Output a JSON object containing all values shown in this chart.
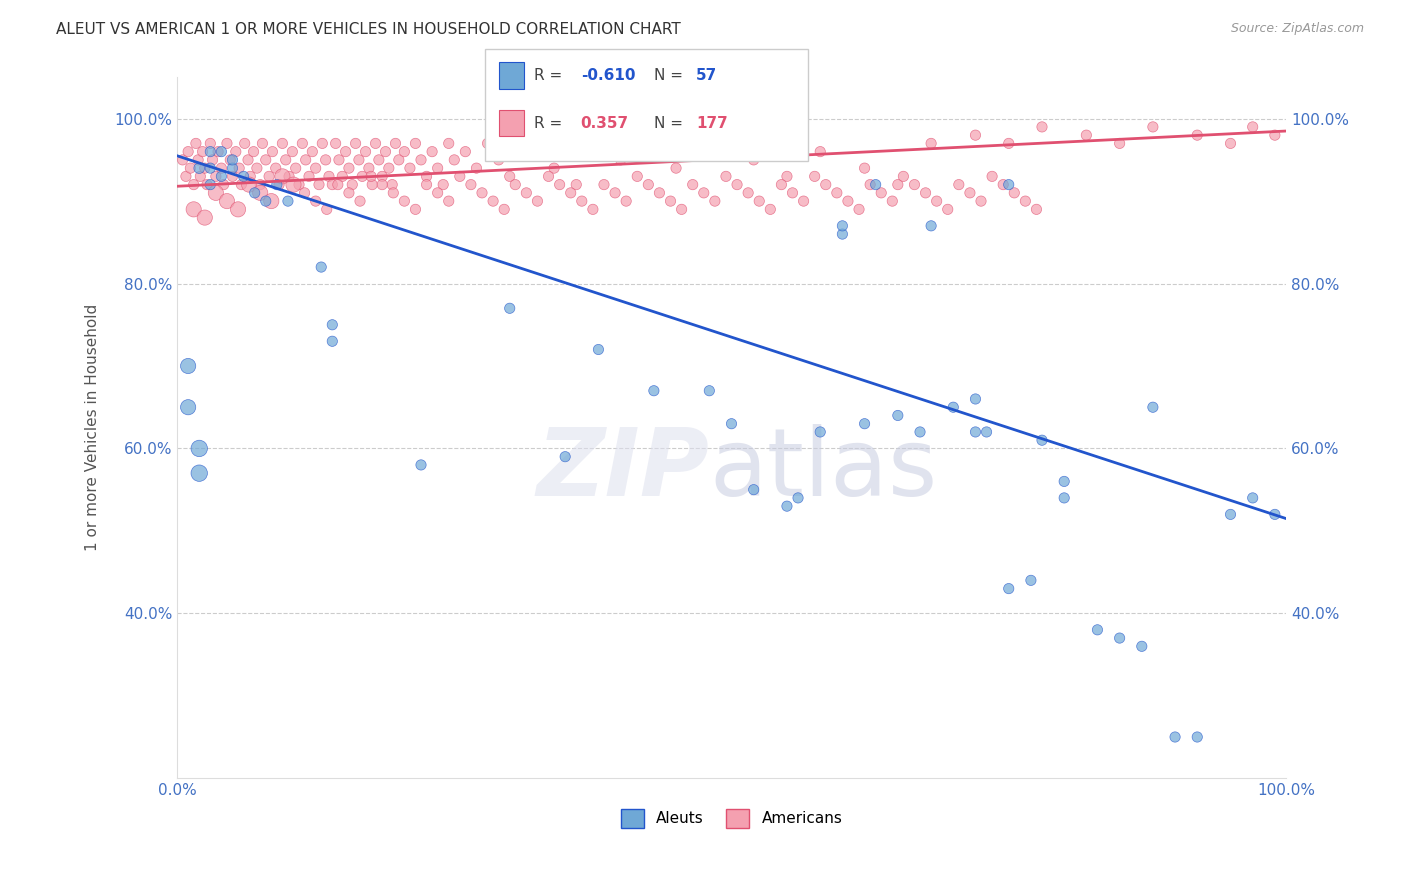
{
  "title": "ALEUT VS AMERICAN 1 OR MORE VEHICLES IN HOUSEHOLD CORRELATION CHART",
  "source": "Source: ZipAtlas.com",
  "ylabel": "1 or more Vehicles in Household",
  "xlim": [
    0,
    1.0
  ],
  "ylim": [
    0.2,
    1.05
  ],
  "yticks": [
    0.4,
    0.6,
    0.8,
    1.0
  ],
  "yticklabels": [
    "40.0%",
    "60.0%",
    "80.0%",
    "100.0%"
  ],
  "blue_color": "#6fa8d6",
  "pink_color": "#f4a0b0",
  "blue_line_color": "#2255cc",
  "pink_line_color": "#e05070",
  "blue_scatter_x": [
    0.02,
    0.03,
    0.04,
    0.05,
    0.06,
    0.07,
    0.08,
    0.09,
    0.1,
    0.03,
    0.04,
    0.05,
    0.03,
    0.01,
    0.01,
    0.02,
    0.02,
    0.13,
    0.14,
    0.14,
    0.22,
    0.35,
    0.43,
    0.5,
    0.52,
    0.55,
    0.58,
    0.6,
    0.62,
    0.65,
    0.67,
    0.7,
    0.72,
    0.73,
    0.75,
    0.77,
    0.78,
    0.8,
    0.83,
    0.85,
    0.87,
    0.9,
    0.92,
    0.95,
    0.97,
    0.99,
    0.3,
    0.38,
    0.48,
    0.56,
    0.6,
    0.68,
    0.72,
    0.8,
    0.88,
    0.63,
    0.75
  ],
  "blue_scatter_y": [
    0.94,
    0.96,
    0.96,
    0.94,
    0.93,
    0.91,
    0.9,
    0.92,
    0.9,
    0.92,
    0.93,
    0.95,
    0.94,
    0.7,
    0.65,
    0.6,
    0.57,
    0.82,
    0.73,
    0.75,
    0.58,
    0.59,
    0.67,
    0.63,
    0.55,
    0.53,
    0.62,
    0.86,
    0.63,
    0.64,
    0.62,
    0.65,
    0.62,
    0.62,
    0.43,
    0.44,
    0.61,
    0.56,
    0.38,
    0.37,
    0.36,
    0.25,
    0.25,
    0.52,
    0.54,
    0.52,
    0.77,
    0.72,
    0.67,
    0.54,
    0.87,
    0.87,
    0.66,
    0.54,
    0.65,
    0.92,
    0.92
  ],
  "blue_scatter_size": [
    60,
    55,
    55,
    55,
    55,
    55,
    55,
    55,
    55,
    55,
    55,
    55,
    55,
    120,
    120,
    140,
    140,
    55,
    55,
    55,
    55,
    55,
    55,
    55,
    55,
    55,
    55,
    55,
    55,
    55,
    55,
    55,
    55,
    55,
    55,
    55,
    55,
    55,
    55,
    55,
    55,
    55,
    55,
    55,
    55,
    55,
    55,
    55,
    55,
    55,
    55,
    55,
    55,
    55,
    55,
    55,
    55
  ],
  "pink_scatter_x": [
    0.005,
    0.008,
    0.01,
    0.012,
    0.015,
    0.017,
    0.019,
    0.021,
    0.023,
    0.025,
    0.027,
    0.03,
    0.032,
    0.035,
    0.037,
    0.04,
    0.042,
    0.045,
    0.048,
    0.05,
    0.053,
    0.056,
    0.058,
    0.061,
    0.064,
    0.066,
    0.069,
    0.072,
    0.075,
    0.077,
    0.08,
    0.083,
    0.086,
    0.089,
    0.092,
    0.095,
    0.098,
    0.101,
    0.104,
    0.107,
    0.11,
    0.113,
    0.116,
    0.119,
    0.122,
    0.125,
    0.128,
    0.131,
    0.134,
    0.137,
    0.14,
    0.143,
    0.146,
    0.149,
    0.152,
    0.155,
    0.158,
    0.161,
    0.164,
    0.167,
    0.17,
    0.173,
    0.176,
    0.179,
    0.182,
    0.185,
    0.188,
    0.191,
    0.194,
    0.197,
    0.2,
    0.205,
    0.21,
    0.215,
    0.22,
    0.225,
    0.23,
    0.235,
    0.24,
    0.245,
    0.25,
    0.26,
    0.27,
    0.28,
    0.29,
    0.3,
    0.32,
    0.34,
    0.36,
    0.38,
    0.4,
    0.42,
    0.45,
    0.48,
    0.52,
    0.55,
    0.58,
    0.62,
    0.65,
    0.68,
    0.72,
    0.75,
    0.78,
    0.82,
    0.85,
    0.88,
    0.92,
    0.95,
    0.97,
    0.99,
    0.015,
    0.025,
    0.035,
    0.045,
    0.055,
    0.065,
    0.075,
    0.085,
    0.095,
    0.105,
    0.115,
    0.125,
    0.135,
    0.145,
    0.155,
    0.165,
    0.175,
    0.185,
    0.195,
    0.205,
    0.215,
    0.225,
    0.235,
    0.245,
    0.255,
    0.265,
    0.275,
    0.285,
    0.295,
    0.305,
    0.315,
    0.325,
    0.335,
    0.345,
    0.355,
    0.365,
    0.375,
    0.385,
    0.395,
    0.405,
    0.415,
    0.425,
    0.435,
    0.445,
    0.455,
    0.465,
    0.475,
    0.485,
    0.495,
    0.505,
    0.515,
    0.525,
    0.535,
    0.545,
    0.555,
    0.565,
    0.575,
    0.585,
    0.595,
    0.605,
    0.615,
    0.625,
    0.635,
    0.645,
    0.655,
    0.665,
    0.675,
    0.685,
    0.695,
    0.705,
    0.715,
    0.725,
    0.735,
    0.745,
    0.755,
    0.765,
    0.775
  ],
  "pink_scatter_y": [
    0.95,
    0.93,
    0.96,
    0.94,
    0.92,
    0.97,
    0.95,
    0.93,
    0.96,
    0.94,
    0.92,
    0.97,
    0.95,
    0.93,
    0.96,
    0.94,
    0.92,
    0.97,
    0.95,
    0.93,
    0.96,
    0.94,
    0.92,
    0.97,
    0.95,
    0.93,
    0.96,
    0.94,
    0.92,
    0.97,
    0.95,
    0.93,
    0.96,
    0.94,
    0.92,
    0.97,
    0.95,
    0.93,
    0.96,
    0.94,
    0.92,
    0.97,
    0.95,
    0.93,
    0.96,
    0.94,
    0.92,
    0.97,
    0.95,
    0.93,
    0.92,
    0.97,
    0.95,
    0.93,
    0.96,
    0.94,
    0.92,
    0.97,
    0.95,
    0.93,
    0.96,
    0.94,
    0.92,
    0.97,
    0.95,
    0.93,
    0.96,
    0.94,
    0.92,
    0.97,
    0.95,
    0.96,
    0.94,
    0.97,
    0.95,
    0.93,
    0.96,
    0.94,
    0.92,
    0.97,
    0.95,
    0.96,
    0.94,
    0.97,
    0.95,
    0.93,
    0.96,
    0.94,
    0.92,
    0.97,
    0.95,
    0.96,
    0.94,
    0.97,
    0.95,
    0.93,
    0.96,
    0.94,
    0.92,
    0.97,
    0.98,
    0.97,
    0.99,
    0.98,
    0.97,
    0.99,
    0.98,
    0.97,
    0.99,
    0.98,
    0.89,
    0.88,
    0.91,
    0.9,
    0.89,
    0.92,
    0.91,
    0.9,
    0.93,
    0.92,
    0.91,
    0.9,
    0.89,
    0.92,
    0.91,
    0.9,
    0.93,
    0.92,
    0.91,
    0.9,
    0.89,
    0.92,
    0.91,
    0.9,
    0.93,
    0.92,
    0.91,
    0.9,
    0.89,
    0.92,
    0.91,
    0.9,
    0.93,
    0.92,
    0.91,
    0.9,
    0.89,
    0.92,
    0.91,
    0.9,
    0.93,
    0.92,
    0.91,
    0.9,
    0.89,
    0.92,
    0.91,
    0.9,
    0.93,
    0.92,
    0.91,
    0.9,
    0.89,
    0.92,
    0.91,
    0.9,
    0.93,
    0.92,
    0.91,
    0.9,
    0.89,
    0.92,
    0.91,
    0.9,
    0.93,
    0.92,
    0.91,
    0.9,
    0.89,
    0.92,
    0.91,
    0.9,
    0.93,
    0.92,
    0.91,
    0.9,
    0.89
  ],
  "pink_scatter_size": [
    55,
    55,
    55,
    55,
    55,
    55,
    55,
    55,
    55,
    55,
    55,
    55,
    55,
    55,
    55,
    55,
    55,
    55,
    55,
    55,
    55,
    55,
    55,
    55,
    55,
    55,
    55,
    55,
    55,
    55,
    55,
    55,
    55,
    55,
    55,
    55,
    55,
    55,
    55,
    55,
    55,
    55,
    55,
    55,
    55,
    55,
    55,
    55,
    55,
    55,
    55,
    55,
    55,
    55,
    55,
    55,
    55,
    55,
    55,
    55,
    55,
    55,
    55,
    55,
    55,
    55,
    55,
    55,
    55,
    55,
    55,
    55,
    55,
    55,
    55,
    55,
    55,
    55,
    55,
    55,
    55,
    55,
    55,
    55,
    55,
    55,
    55,
    55,
    55,
    55,
    55,
    55,
    55,
    55,
    55,
    55,
    55,
    55,
    55,
    55,
    55,
    55,
    55,
    55,
    55,
    55,
    55,
    55,
    55,
    55,
    120,
    120,
    120,
    120,
    120,
    120,
    120,
    120,
    120,
    120,
    55,
    55,
    55,
    55,
    55,
    55,
    55,
    55,
    55,
    55,
    55,
    55,
    55,
    55,
    55,
    55,
    55,
    55,
    55,
    55,
    55,
    55,
    55,
    55,
    55,
    55,
    55,
    55,
    55,
    55,
    55,
    55,
    55,
    55,
    55,
    55,
    55,
    55,
    55,
    55,
    55,
    55,
    55,
    55,
    55,
    55,
    55,
    55,
    55,
    55,
    55,
    55,
    55,
    55,
    55,
    55,
    55,
    55,
    55,
    55,
    55,
    55,
    55,
    55,
    55,
    55,
    55
  ],
  "blue_line_x": [
    0.0,
    1.0
  ],
  "blue_line_y": [
    0.955,
    0.515
  ],
  "pink_line_x": [
    0.0,
    1.0
  ],
  "pink_line_y": [
    0.918,
    0.985
  ]
}
